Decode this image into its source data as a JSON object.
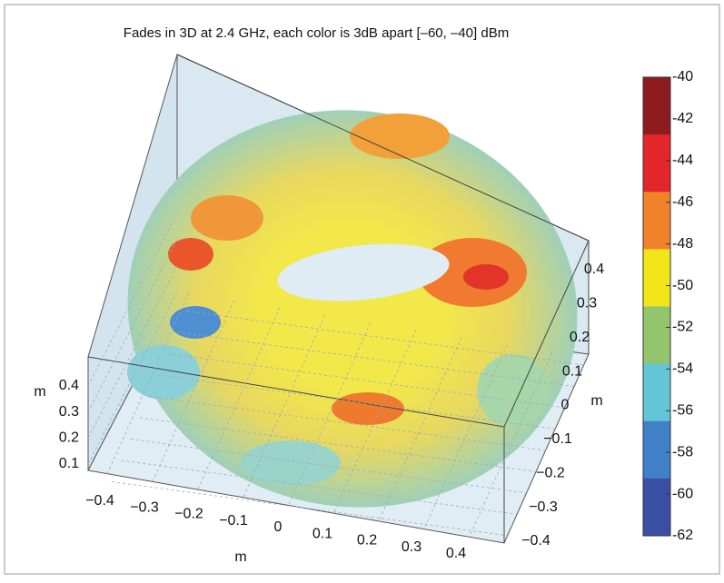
{
  "chart_data": {
    "type": "surface3d",
    "title": "Fades in 3D at 2.4 GHz, each color is 3dB apart [–60, –40] dBm",
    "xlabel": "m",
    "ylabel": "m",
    "zlabel": "m",
    "xticks": [
      {
        "value": -0.4,
        "label": "−0.4"
      },
      {
        "value": -0.3,
        "label": "−0.3"
      },
      {
        "value": -0.2,
        "label": "−0.2"
      },
      {
        "value": -0.1,
        "label": "−0.1"
      },
      0,
      0.1,
      0.2,
      0.3,
      0.4
    ],
    "yticks": [
      {
        "value": -0.4,
        "label": "−0.4"
      },
      {
        "value": -0.3,
        "label": "−0.3"
      },
      {
        "value": -0.2,
        "label": "−0.2"
      },
      {
        "value": -0.1,
        "label": "−0.1"
      },
      0,
      0.1,
      0.2,
      0.3,
      0.4
    ],
    "zticks": [
      0.1,
      0.2,
      0.3,
      0.4
    ],
    "grid": true,
    "colorbar": {
      "clim": [
        -62,
        -40
      ],
      "ticks": [
        -40,
        -42,
        -44,
        -46,
        -48,
        -50,
        -52,
        -54,
        -56,
        -58,
        -60,
        -62
      ],
      "colors": [
        "#8e1b1e",
        "#e3262a",
        "#f0832a",
        "#f2e51a",
        "#93c66c",
        "#62c6d8",
        "#3f80c6",
        "#3a4ea3"
      ]
    }
  }
}
